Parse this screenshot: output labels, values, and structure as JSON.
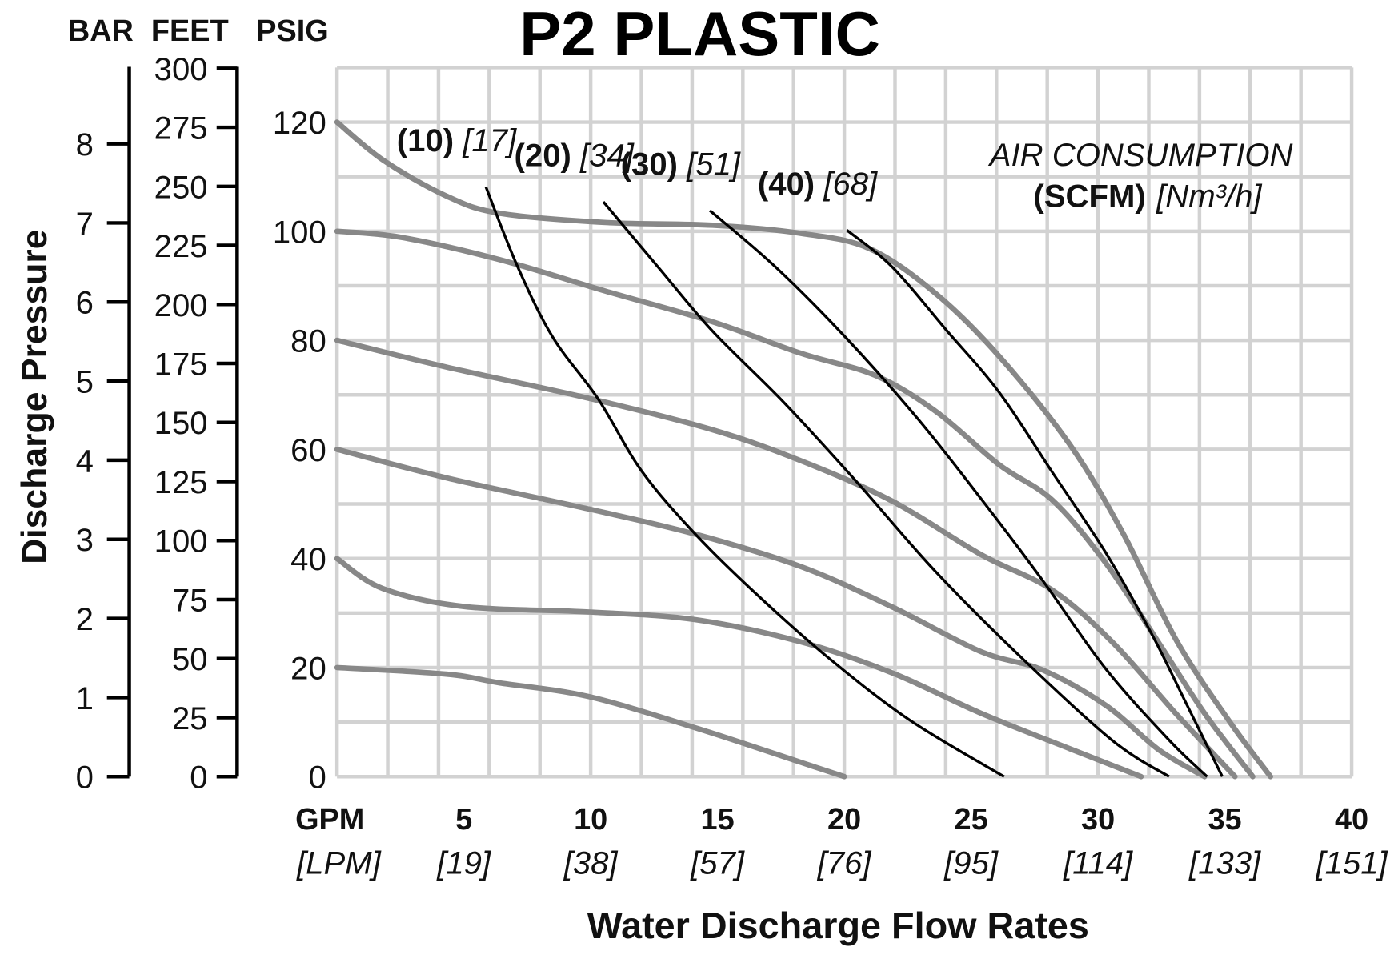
{
  "chart_data": {
    "type": "line",
    "title": "P2 PLASTIC",
    "xlabel": "Water Discharge Flow Rates",
    "ylabel": "Discharge Pressure",
    "x_unit_primary": "GPM",
    "x_unit_secondary": "[LPM]",
    "xlim": [
      0,
      40
    ],
    "ylim": [
      0,
      130
    ],
    "grid": true,
    "x_ticks": [
      {
        "gpm": 5,
        "label": "5",
        "lpm": "[19]"
      },
      {
        "gpm": 10,
        "label": "10",
        "lpm": "[38]"
      },
      {
        "gpm": 15,
        "label": "15",
        "lpm": "[57]"
      },
      {
        "gpm": 20,
        "label": "20",
        "lpm": "[76]"
      },
      {
        "gpm": 25,
        "label": "25",
        "lpm": "[95]"
      },
      {
        "gpm": 30,
        "label": "30",
        "lpm": "[114]"
      },
      {
        "gpm": 35,
        "label": "35",
        "lpm": "[133]"
      },
      {
        "gpm": 40,
        "label": "40",
        "lpm": "[151]"
      }
    ],
    "axes": {
      "bar": {
        "label": "BAR",
        "ticks": [
          "0",
          "1",
          "2",
          "3",
          "4",
          "5",
          "6",
          "7",
          "8"
        ]
      },
      "feet": {
        "label": "FEET",
        "ticks": [
          "0",
          "25",
          "50",
          "75",
          "100",
          "125",
          "150",
          "175",
          "200",
          "225",
          "250",
          "275",
          "300"
        ]
      },
      "psig": {
        "label": "PSIG",
        "ticks": [
          "0",
          "20",
          "40",
          "60",
          "80",
          "100",
          "120"
        ]
      }
    },
    "air_consumption_title": "AIR CONSUMPTION",
    "air_consumption_units_bold": "(SCFM)",
    "air_consumption_units_italic": "[Nm³/h]",
    "pressure_series": [
      {
        "name": "120 psig",
        "color": "#888888",
        "points": [
          [
            0,
            120
          ],
          [
            1.83,
            113
          ],
          [
            4.29,
            106.5
          ],
          [
            6.4,
            103.3
          ],
          [
            10.6,
            101.6
          ],
          [
            14.8,
            101.1
          ],
          [
            18.3,
            99.6
          ],
          [
            21,
            96.8
          ],
          [
            23.6,
            88.6
          ],
          [
            26.1,
            77.1
          ],
          [
            28.9,
            60.8
          ],
          [
            31,
            44.5
          ],
          [
            33.1,
            24.9
          ],
          [
            35.2,
            10
          ],
          [
            36.8,
            0
          ]
        ]
      },
      {
        "name": "100 psig",
        "color": "#888888",
        "points": [
          [
            0,
            100
          ],
          [
            2.5,
            98.9
          ],
          [
            6.4,
            94.8
          ],
          [
            10.6,
            89
          ],
          [
            14.8,
            83.4
          ],
          [
            18.3,
            77.6
          ],
          [
            21.2,
            73.6
          ],
          [
            23.6,
            67
          ],
          [
            26.1,
            57.2
          ],
          [
            28.2,
            50.7
          ],
          [
            30.3,
            39.2
          ],
          [
            32.4,
            24.5
          ],
          [
            34.2,
            11.6
          ],
          [
            36.1,
            0
          ]
        ]
      },
      {
        "name": "80 psig",
        "color": "#888888",
        "points": [
          [
            0,
            80
          ],
          [
            4.3,
            75.1
          ],
          [
            9.9,
            69.4
          ],
          [
            14.8,
            63.6
          ],
          [
            18.3,
            57.9
          ],
          [
            21.9,
            50.5
          ],
          [
            25.4,
            40.7
          ],
          [
            28.2,
            34.2
          ],
          [
            30.6,
            24.5
          ],
          [
            33.1,
            11.4
          ],
          [
            35.4,
            0
          ]
        ]
      },
      {
        "name": "60 psig",
        "color": "#888888",
        "points": [
          [
            0,
            60
          ],
          [
            4.3,
            54.8
          ],
          [
            9.9,
            49.1
          ],
          [
            14.1,
            44.5
          ],
          [
            18.3,
            38.5
          ],
          [
            21.9,
            31.1
          ],
          [
            25.4,
            22.9
          ],
          [
            27.8,
            19.6
          ],
          [
            30.3,
            13.1
          ],
          [
            32.4,
            4.9
          ],
          [
            34.2,
            0
          ]
        ]
      },
      {
        "name": "40 psig",
        "color": "#888888",
        "points": [
          [
            0,
            40
          ],
          [
            1.8,
            34.5
          ],
          [
            5,
            31.2
          ],
          [
            9.9,
            30.2
          ],
          [
            14.1,
            28.8
          ],
          [
            18.3,
            24.7
          ],
          [
            21.9,
            19
          ],
          [
            25.4,
            11.6
          ],
          [
            28.9,
            5.1
          ],
          [
            31.7,
            0
          ]
        ]
      },
      {
        "name": "20 psig",
        "color": "#888888",
        "points": [
          [
            0,
            20
          ],
          [
            4.3,
            18.8
          ],
          [
            6.4,
            17.2
          ],
          [
            9.9,
            14.7
          ],
          [
            14.1,
            9
          ],
          [
            18.3,
            2.6
          ],
          [
            20,
            0
          ]
        ]
      }
    ],
    "air_series": [
      {
        "name": "10 SCFM",
        "label_bold": "(10)",
        "label_italic": "[17]",
        "color": "#000000",
        "points": [
          [
            5.87,
            108.1
          ],
          [
            7.1,
            93.7
          ],
          [
            8.5,
            80.6
          ],
          [
            10.3,
            69.2
          ],
          [
            12,
            56.1
          ],
          [
            14.1,
            44.6
          ],
          [
            16.6,
            33.2
          ],
          [
            19.4,
            21.7
          ],
          [
            22.6,
            10.3
          ],
          [
            26.3,
            0
          ]
        ]
      },
      {
        "name": "20 SCFM",
        "label_bold": "(20)",
        "label_italic": "[34]",
        "color": "#000000",
        "points": [
          [
            10.5,
            105.4
          ],
          [
            12.7,
            93.2
          ],
          [
            14.8,
            81.7
          ],
          [
            17.6,
            68.7
          ],
          [
            20.5,
            54
          ],
          [
            23.6,
            37.6
          ],
          [
            27.1,
            21.3
          ],
          [
            30.6,
            6.5
          ],
          [
            32.8,
            0
          ]
        ]
      },
      {
        "name": "30 SCFM",
        "label_bold": "(30)",
        "label_italic": "[51]",
        "color": "#000000",
        "points": [
          [
            14.7,
            103.8
          ],
          [
            17.3,
            93.4
          ],
          [
            20.1,
            80.3
          ],
          [
            22.9,
            65.6
          ],
          [
            25.4,
            50.9
          ],
          [
            27.8,
            36.1
          ],
          [
            30.3,
            19.8
          ],
          [
            32.8,
            6.7
          ],
          [
            34.3,
            0
          ]
        ]
      },
      {
        "name": "40 SCFM",
        "label_bold": "(40)",
        "label_italic": "[68]",
        "color": "#000000",
        "points": [
          [
            20.1,
            100.2
          ],
          [
            21.9,
            93.4
          ],
          [
            24,
            82
          ],
          [
            26.1,
            70.5
          ],
          [
            28.2,
            55.8
          ],
          [
            30.3,
            41.1
          ],
          [
            32.1,
            26.3
          ],
          [
            33.5,
            13.2
          ],
          [
            34.9,
            0
          ]
        ]
      }
    ]
  }
}
